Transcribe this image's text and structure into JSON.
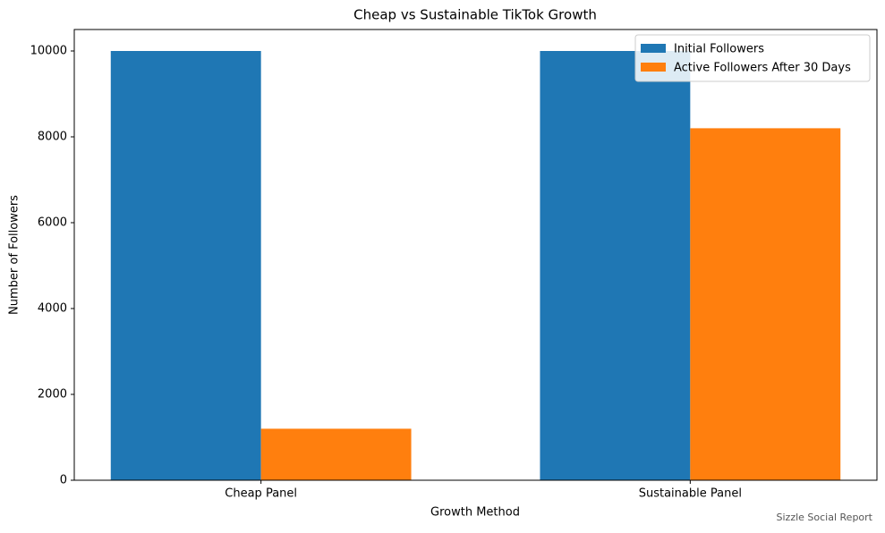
{
  "chart_data": {
    "type": "bar",
    "title": "Cheap vs Sustainable TikTok Growth",
    "x_label": "Growth Method",
    "y_label": "Number of Followers",
    "categories": [
      "Cheap Panel",
      "Sustainable Panel"
    ],
    "series": [
      {
        "name": "Initial Followers",
        "color": "#1f77b4",
        "values": [
          10000,
          10000
        ]
      },
      {
        "name": "Active Followers After 30 Days",
        "color": "#ff7f0e",
        "values": [
          1200,
          8200
        ]
      }
    ],
    "ylim": [
      0,
      10500
    ],
    "yticks": [
      0,
      2000,
      4000,
      6000,
      8000,
      10000
    ],
    "legend": "upper right",
    "footnote": "Sizzle Social Report"
  }
}
